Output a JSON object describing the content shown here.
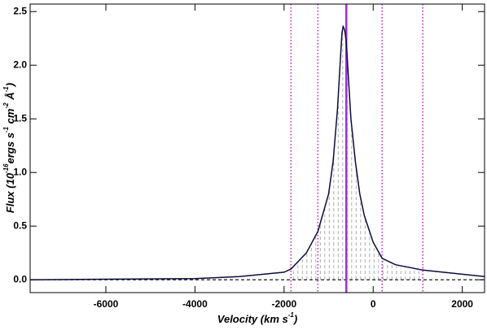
{
  "chart_data": {
    "type": "line",
    "xlabel": [
      "Velocity (km s",
      "-1",
      ")"
    ],
    "ylabel": [
      "Flux (10",
      "-16",
      "ergs s",
      "-1",
      " cm",
      "-2",
      " Å",
      "-1",
      ")"
    ],
    "xlim": [
      -7700,
      2500
    ],
    "ylim": [
      -0.12,
      2.57
    ],
    "xticks": [
      -6000,
      -4000,
      -2000,
      0,
      2000
    ],
    "yticks": [
      {
        "value": 0,
        "label": "0.0"
      },
      0.5,
      {
        "value": 1,
        "label": "1.0"
      },
      1.5,
      {
        "value": 2,
        "label": "2.0"
      },
      2.5
    ],
    "series": [
      {
        "color": "#0b0b3b",
        "x": [
          -7700,
          -6000,
          -4000,
          -3000,
          -2000,
          -1845,
          -1500,
          -1242,
          -1000,
          -900,
          -800,
          -730,
          -700,
          -676,
          -650,
          -630,
          -600,
          -550,
          -500,
          -400,
          -300,
          -200,
          0,
          200,
          500,
          1114,
          2500
        ],
        "values": [
          0.0,
          0.005,
          0.01,
          0.03,
          0.07,
          0.1,
          0.25,
          0.45,
          0.8,
          1.1,
          1.6,
          2.1,
          2.3,
          2.36,
          2.34,
          2.3,
          2.2,
          1.85,
          1.5,
          1.1,
          0.8,
          0.6,
          0.35,
          0.2,
          0.14,
          0.09,
          0.03
        ]
      }
    ],
    "hline": {
      "y": 0,
      "color": "#000000"
    },
    "vlines": [
      {
        "x": -1845,
        "color": "#c020c0",
        "style": "dotted"
      },
      {
        "x": -1242,
        "color": "#c020c0",
        "style": "dotted"
      },
      {
        "x": -603,
        "color": "#9a30e0",
        "style": "solid"
      },
      {
        "x": 201,
        "color": "#c020c0",
        "style": "dotted"
      },
      {
        "x": 1114,
        "color": "#c020c0",
        "style": "dotted"
      }
    ]
  }
}
